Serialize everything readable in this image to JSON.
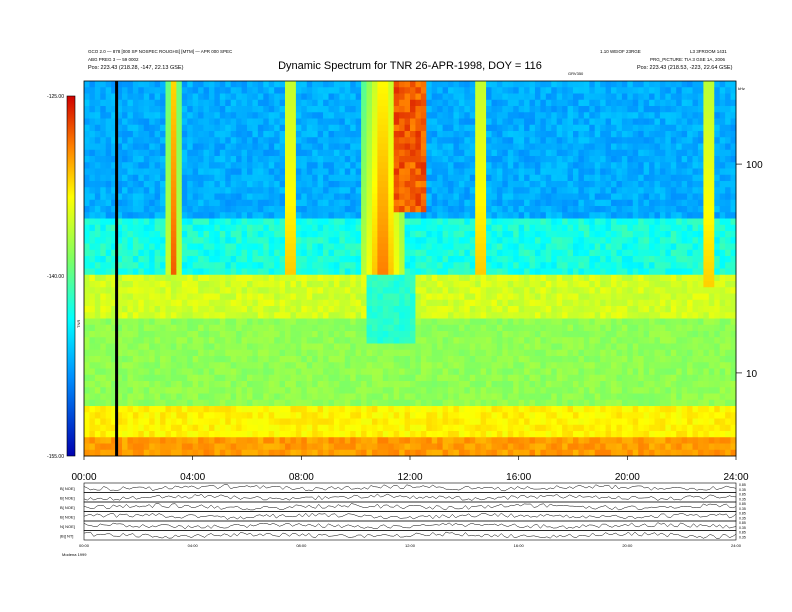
{
  "chart_data": [
    {
      "type": "heatmap",
      "title": "Dynamic Spectrum for TNR 26-APR-1998, DOY = 116",
      "header_left": [
        "GCO 2.0 — 878 [000 SP NOSPEC ROUGHS] [MTM] — APR 000 SPEC",
        "ABG PREG 3 — 59 0002",
        "Pos:    223.43 (218.28, -147, 22.13 GSE)"
      ],
      "header_right": [
        "1.10 WEIOF 23RGE",
        "L3 3FROOM 1431",
        "PRG_PICTURE: TIA 3 GSE 1A, 2006",
        "Pos:   223.43 (218.53, -223, 22.64 GSE)"
      ],
      "header_center_small": "GRV350",
      "colorbar": {
        "label": "TNR",
        "ticks": [
          "-125.00",
          "-140.00",
          "-155.00"
        ],
        "range": [
          -155,
          -125
        ]
      },
      "x_ticks": [
        "00:00",
        "04:00",
        "08:00",
        "12:00",
        "16:00",
        "20:00",
        "24:00"
      ],
      "x_range_hours": [
        0,
        24
      ],
      "y_right_ticks": [
        "100",
        "10"
      ],
      "y_right_unit": "kHz",
      "y_right_scale": "log",
      "y_range_khz": [
        4,
        250
      ],
      "features": [
        {
          "name": "black gap",
          "time_h": 1.2
        },
        {
          "name": "burst",
          "time_h": 3.3
        },
        {
          "name": "burst",
          "time_h": 7.6
        },
        {
          "name": "burst",
          "time_h": 11.0
        },
        {
          "name": "burst",
          "time_h": 14.6
        },
        {
          "name": "burst",
          "time_h": 23.0
        }
      ]
    },
    {
      "type": "line",
      "panels": [
        {
          "label": "B[ NOE]",
          "right_ticks": [
            "0.85",
            "0.35"
          ]
        },
        {
          "label": "B[ NOE]",
          "right_ticks": [
            "0.85",
            "0.35"
          ]
        },
        {
          "label": "B[ NOE]",
          "right_ticks": [
            "0.85",
            "0.35"
          ]
        },
        {
          "label": "B[ NOE]",
          "right_ticks": [
            "0.85",
            "0.35"
          ]
        },
        {
          "label": "N[ NOE]",
          "right_ticks": [
            "0.85",
            "0.35"
          ]
        },
        {
          "label": "|B|[ NT]",
          "right_ticks": [
            "0.85",
            "0.35"
          ]
        }
      ],
      "x_ticks": [
        "00:00",
        "04:00",
        "08:00",
        "12:00",
        "16:00",
        "20:00",
        "24:00"
      ],
      "footer_left": "Modena 1999"
    }
  ]
}
